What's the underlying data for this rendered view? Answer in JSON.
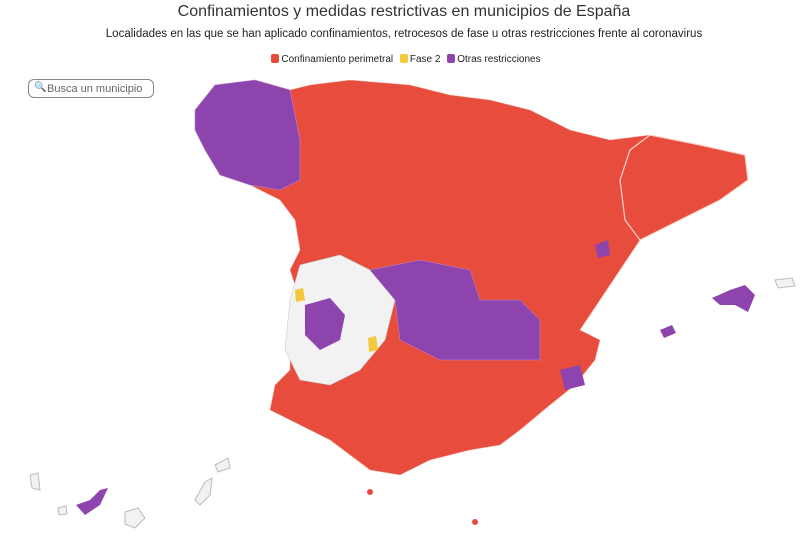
{
  "header": {
    "title": "Confinamientos y medidas restrictivas en municipios de España",
    "subtitle": "Localidades en las que se han aplicado confinamientos, retrocesos de fase u otras restricciones frente al coronavirus"
  },
  "legend": [
    {
      "label": "Confinamiento perimetral",
      "color": "#e84c3d"
    },
    {
      "label": "Fase 2",
      "color": "#f2c93a"
    },
    {
      "label": "Otras restricciones",
      "color": "#8e44ad"
    }
  ],
  "search": {
    "placeholder": "Busca un municipio",
    "icon": "search-icon"
  },
  "colors": {
    "none": "#f2f2f2"
  }
}
